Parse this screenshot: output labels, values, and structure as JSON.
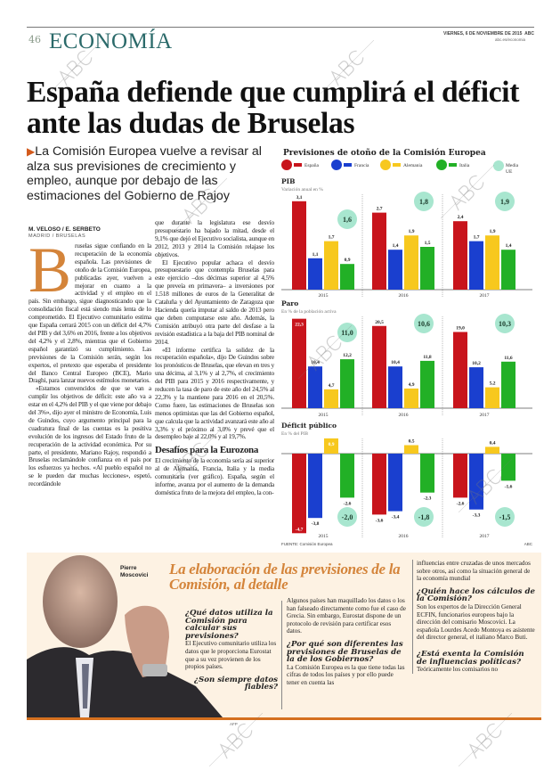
{
  "header": {
    "page_number": "46",
    "section": "ECONOMÍA",
    "date": "VIERNES, 6 DE NOVIEMBRE DE 2015",
    "brand": "ABC",
    "url": "abc.es/economia"
  },
  "article": {
    "headline": "España defiende que cumplirá el déficit ante las dudas de Bruselas",
    "subtitle": "La Comisión Europea vuelve a revisar al alza sus previsiones de crecimiento y empleo, aunque por debajo de las estimaciones del Gobierno de Rajoy",
    "byline": "M. VELOSO / E. SERBETO",
    "place": "MADRID / BRUSELAS",
    "drop_cap": "B",
    "col1": [
      "ruselas sigue confiando en la recuperación de la economía española. Las previsiones de otoño de la Comisión Europea, publicadas ayer, vuelven a mejorar en cuanto a la actividad y el empleo en el país. Sin embargo, sigue diagnosticando que la consolidación fiscal está siendo más lenta de lo comprometido. El Ejecutivo comunitario estima que España cerrará 2015 con un déficit del 4,7% del PIB y del 3,6% en 2016, frente a los objetivos del 4,2% y el 2,8%, mientras que el Gobierno español garantizó su cumplimiento. Las previsiones de la Comisión serán, según los expertos, el pretexto que esperaba el presidente del Banco Central Europeo (BCE), Mario Draghi, para lanzar nuevos estímulos monetarios.",
      "«Estamos convencidos de que se van a cumplir los objetivos de déficit: este año va a estar en el 4,2% del PIB y el que viene por debajo del 3%», dijo ayer el ministro de Economía, Luis de Guindos, cuyo argumento principal para la cuadratura final de las cuentas es la positiva evolución de los ingresos del Estado fruto de la recuperación de la actividad económica. Por su parte, el presidente, Mariano Rajoy, respondió a Bruselas reclamándole confianza en el país por los esfuerzos ya hechos. «Al pueblo español no se le pueden dar muchas lecciones», espetó, recordándole"
    ],
    "col2": [
      "que durante la legislatura ese desvío presupuestario ha bajado la mitad, desde el 9,1% que dejó el Ejecutivo socialista, aunque en 2012, 2013 y 2014 la Comisión relajase los objetivos.",
      "El Ejecutivo popular achaca el desvío presupuestario que contempla Bruselas para este ejercicio –dos décimas superior al 4,5% que preveía en primavera– a inversiones por 1.518 millones de euros de la Generalitat de Cataluña y del Ayuntamiento de Zaragoza que Hacienda quería imputar al saldo de 2013 pero que deben computarse este año. Además, la Comisión atribuyó otra parte del desfase a la revisión estadística a la baja del PIB nominal de 2014.",
      "«El informe certifica la solidez de la recuperación española», dijo De Guindos sobre los pronósticos de Bruselas, que elevan en tres y una décima, al 3,1% y al 2,7%, el crecimiento del PIB para 2015 y 2016 respectivamente, y reducen la tasa de paro de este año del 24,5% al 22,3% y la mantiene para 2016 en el 20,5%. Como fuere, las estimaciones de Bruselas son menos optimistas que las del Gobierno español, que calcula que la actividad avanzará este año al 3,3% y el próximo al 3,0% y prevé que el desempleo baje al 22,0% y al 19,7%."
    ],
    "subhead": "Desafíos para la Eurozona",
    "col2_after": "El crecimiento de la economía sería así superior al de Alemania, Francia, Italia y la media comunitaria (ver gráfico). España, según el informe, avanza por el aumento de la demanda doméstica fruto de la mejora del empleo, la con-"
  },
  "chart_data": {
    "type": "bar",
    "title": "Previsiones de otoño de la Comisión Europea",
    "categories": [
      "2015",
      "2016",
      "2017"
    ],
    "legend": [
      {
        "name": "España",
        "color": "#c8141c"
      },
      {
        "name": "Francia",
        "color": "#1a3fcf"
      },
      {
        "name": "Alemania",
        "color": "#f7c81e"
      },
      {
        "name": "Italia",
        "color": "#22b026"
      },
      {
        "name": "Media UE",
        "color": "#a8e6cf"
      }
    ],
    "panels": [
      {
        "title": "PIB",
        "subtitle": "Variación anual en %",
        "series": [
          [
            3.1,
            1.1,
            1.7,
            0.9
          ],
          [
            2.7,
            1.4,
            1.9,
            1.5
          ],
          [
            2.4,
            1.7,
            1.9,
            1.4
          ]
        ],
        "ue": [
          1.6,
          1.8,
          1.9
        ]
      },
      {
        "title": "Paro",
        "subtitle": "En % de la población activa",
        "series": [
          [
            22.3,
            10.4,
            4.7,
            12.2
          ],
          [
            20.5,
            10.4,
            4.9,
            11.8
          ],
          [
            19.0,
            10.2,
            5.2,
            11.6
          ]
        ],
        "ue": [
          11.0,
          10.6,
          10.3
        ]
      },
      {
        "title": "Déficit público",
        "subtitle": "En % del PIB",
        "series": [
          [
            -4.7,
            -3.8,
            0.9,
            -2.6
          ],
          [
            -3.6,
            -3.4,
            0.5,
            -2.3
          ],
          [
            -2.6,
            -3.3,
            0.4,
            -1.6
          ]
        ],
        "ue": [
          -2.0,
          -1.8,
          -1.5
        ]
      }
    ],
    "source": "FUENTE: Comisión Europea",
    "credit": "ABC"
  },
  "sidebar": {
    "person": "Pierre Moscovici",
    "photo_credit": "AFP",
    "title": "La elaboración de las previsiones de la Comisión, al detalle",
    "q1": "¿Qué datos utiliza la Comisión para calcular sus previsiones?",
    "a1": "El Ejecutivo comunitario utiliza los datos que le proporciona Eurostat que a su vez provienen de los propios países.",
    "q2": "¿Son siempre datos fiables?",
    "a2": "Algunos países han maquillado los datos o los han falseado directamente como fue el caso de Grecia. Sin embargo, Eurostat dispone de un protocolo de revisión para certificar esos datos.",
    "q3": "¿Por qué son diferentes las previsiones de Bruselas de la de los Gobiernos?",
    "a3": "La Comisión Europea es la que tiene todas las cifras de todos los países y por ello puede tener en cuenta las",
    "a3b": "influencias entre cruzadas de unos mercados sobre otros, así como la situación general de la economía mundial",
    "q4": "¿Quién hace los cálculos de la Comisión?",
    "a4": "Son los expertos de la Dirección General ECFIN, funcionarios europeos bajo la dirección del comisario Moscovici. La española Lourdes Acedo Montoya es asistente del director general, el italiano Marco Buti.",
    "q5": "¿Está exenta la Comisión de influencias políticas?",
    "a5": "Teóricamente los comisarios no"
  },
  "watermark": "ABC",
  "colors": {
    "accent": "#d4843a",
    "section": "#2b6a6a",
    "box_bg": "#fdf2e3"
  }
}
